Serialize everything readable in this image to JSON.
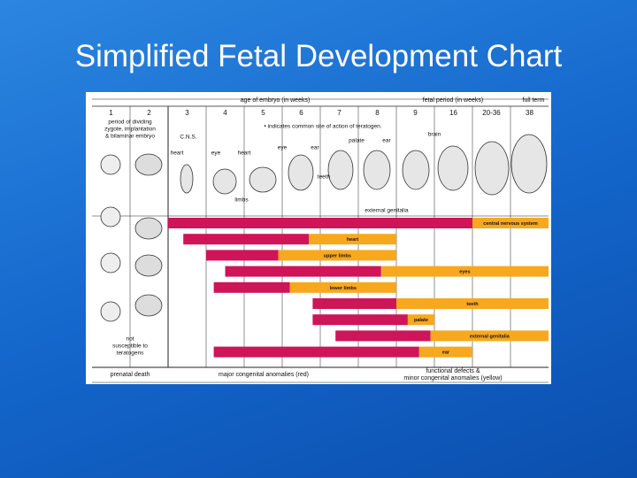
{
  "title": "Simplified Fetal Development Chart",
  "header": {
    "embryo_period": "age of embryo (in weeks)",
    "fetal_period": "fetal period (in weeks)",
    "full_term": "full term"
  },
  "columns": [
    "1",
    "2",
    "3",
    "4",
    "5",
    "6",
    "7",
    "8",
    "9",
    "16",
    "20-36",
    "38"
  ],
  "stage_note": [
    "period of dividing",
    "zygote, implantation",
    "& bilaminar embryo"
  ],
  "teratogen_note": "• indicates common site of action of teratogen.",
  "not_susceptible": [
    "not",
    "susceptible to",
    "teratogens"
  ],
  "organ_labels": [
    "C.N.S.",
    "heart",
    "eye",
    "heart",
    "limbs",
    "eye",
    "ear",
    "palate",
    "ear",
    "teeth",
    "brain",
    "external genitalia"
  ],
  "timeline": [
    {
      "label": "central nervous system",
      "red": [
        2,
        10
      ],
      "yellow": [
        10,
        12
      ]
    },
    {
      "label": "heart",
      "red": [
        2.4,
        5.7
      ],
      "yellow": [
        5.7,
        8
      ]
    },
    {
      "label": "upper limbs",
      "red": [
        3,
        4.9
      ],
      "yellow": [
        4.9,
        8
      ]
    },
    {
      "label": "eyes",
      "red": [
        3.5,
        7.6
      ],
      "yellow": [
        7.6,
        12
      ]
    },
    {
      "label": "lower limbs",
      "red": [
        3.2,
        5.2
      ],
      "yellow": [
        5.2,
        8
      ]
    },
    {
      "label": "teeth",
      "red": [
        5.8,
        8
      ],
      "yellow": [
        8,
        12
      ]
    },
    {
      "label": "palate",
      "red": [
        5.8,
        8.3
      ],
      "yellow": [
        8.3,
        9
      ]
    },
    {
      "label": "external genitalia",
      "red": [
        6.4,
        8.9
      ],
      "yellow": [
        8.9,
        12
      ]
    },
    {
      "label": "ear",
      "red": [
        3.2,
        8.6
      ],
      "yellow": [
        8.6,
        10
      ]
    }
  ],
  "footer": {
    "prenatal": "prenatal death",
    "major": "major congenital anomalies (red)",
    "minor": [
      "functional defects &",
      "minor congenital anomalies (yellow)"
    ]
  }
}
